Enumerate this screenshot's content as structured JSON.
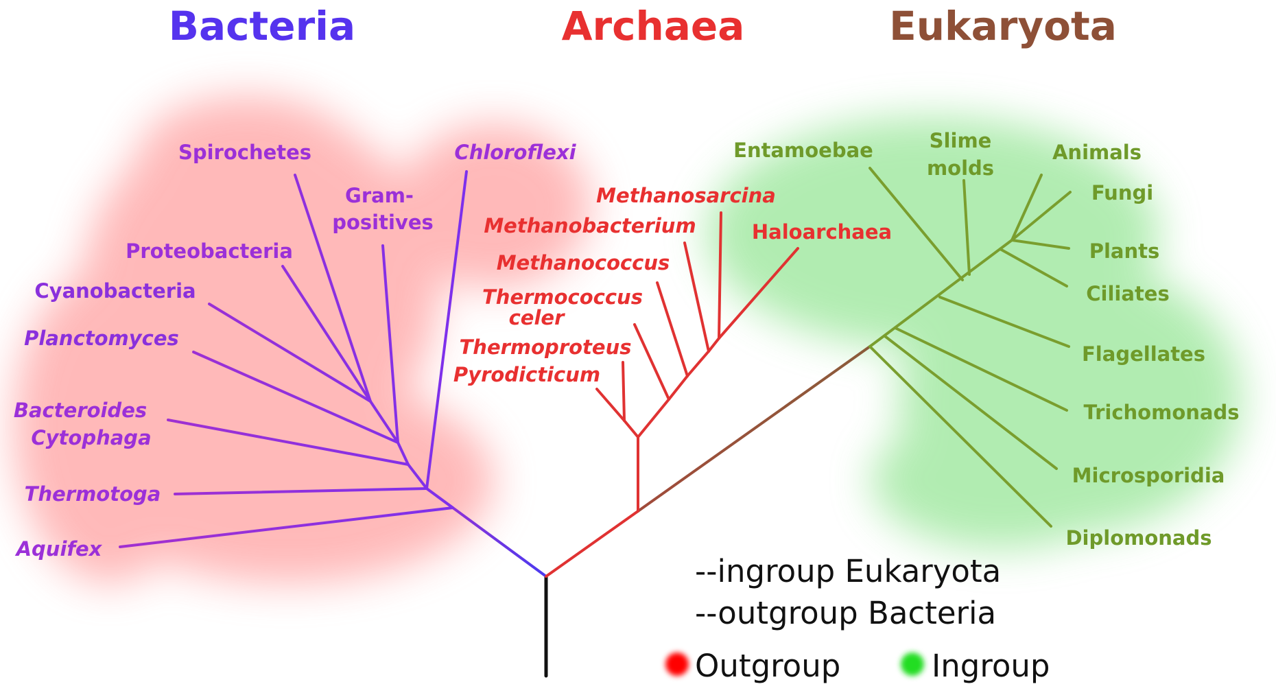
{
  "domains": {
    "bacteria": {
      "label": "Bacteria",
      "color": "#5533ee"
    },
    "archaea": {
      "label": "Archaea",
      "color": "#e83030"
    },
    "eukaryota": {
      "label": "Eukaryota",
      "color": "#8e5037"
    }
  },
  "bacteria_leaves": [
    "Spirochetes",
    "Gram-",
    "positives",
    "Chloroflexi",
    "Proteobacteria",
    "Cyanobacteria",
    "Planctomyces",
    "Bacteroides",
    "Cytophaga",
    "Thermotoga",
    "Aquifex"
  ],
  "archaea_leaves": [
    "Methanosarcina",
    "Methanobacterium",
    "Haloarchaea",
    "Methanococcus",
    "Thermococcus",
    "celer",
    "Thermoproteus",
    "Pyrodicticum"
  ],
  "eukaryota_leaves": [
    "Entamoebae",
    "Slime",
    "molds",
    "Animals",
    "Fungi",
    "Plants",
    "Ciliates",
    "Flagellates",
    "Trichomonads",
    "Microsporidia",
    "Diplomonads"
  ],
  "legend": {
    "ingroup_note": "--ingroup Eukaryota",
    "outgroup_note": "--outgroup Bacteria",
    "outgroup_label": "Outgroup",
    "ingroup_label": "Ingroup",
    "outgroup_color": "#ff0000",
    "ingroup_color": "#22dd22"
  },
  "colors": {
    "bacteria_branch": "#9b30d8",
    "archaea_branch": "#e03232",
    "eukaryota_branch": "#7a9e2e",
    "eukaryota_leaf_text": "#6f9a2a",
    "root": "#111111"
  }
}
